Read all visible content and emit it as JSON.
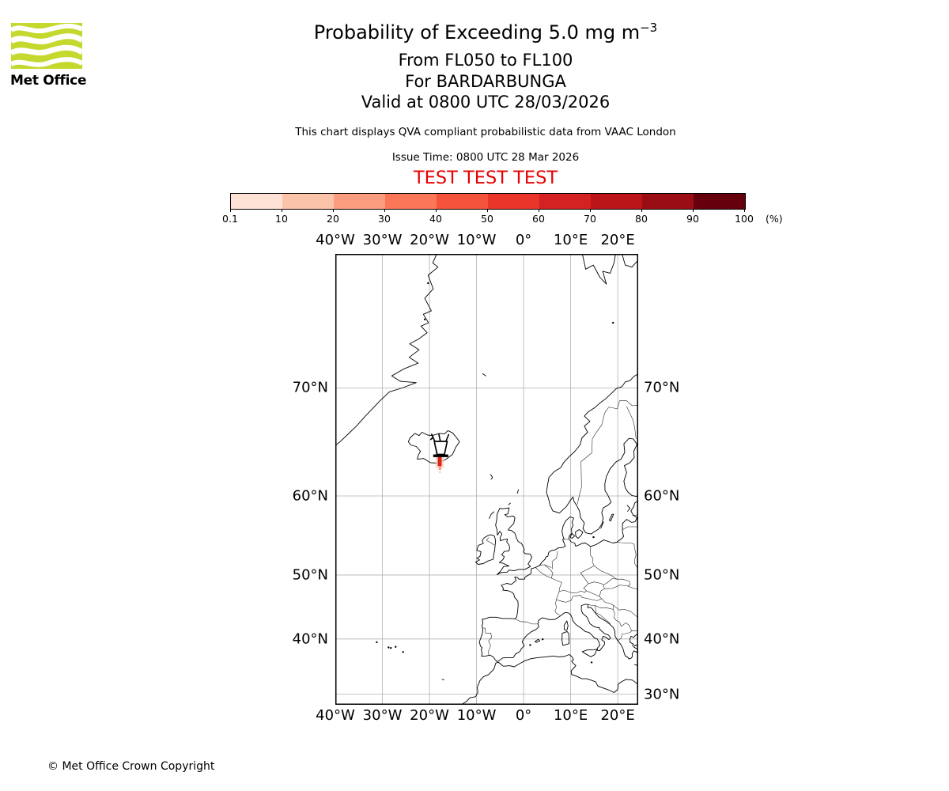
{
  "logo": {
    "brand": "Met Office",
    "green": "#c4d82e"
  },
  "header": {
    "title_main": "Probability of Exceeding 5.0 mg m",
    "title_sup": "−3",
    "subtitle_levels": "From FL050 to FL100",
    "subtitle_volcano": "For BARDARBUNGA",
    "subtitle_valid": "Valid at 0800 UTC 28/03/2026",
    "description": "This chart displays QVA compliant probabilistic data from VAAC London",
    "issue_time": "Issue Time: 0800 UTC 28 Mar 2026",
    "test_banner": "TEST TEST TEST",
    "test_color": "#e60000"
  },
  "colorbar": {
    "tick_labels": [
      "0.1",
      "10",
      "20",
      "30",
      "40",
      "50",
      "60",
      "70",
      "80",
      "90",
      "100"
    ],
    "unit_label": "(%)",
    "segment_colors": [
      "#fde2d5",
      "#fcc3ab",
      "#fc9d7f",
      "#fb7758",
      "#f5543c",
      "#ea362a",
      "#d42121",
      "#bb151a",
      "#9a0d14",
      "#67000d"
    ]
  },
  "map": {
    "top_axis_labels": [
      "40°W",
      "30°W",
      "20°W",
      "10°W",
      "0°",
      "10°E",
      "20°E"
    ],
    "bottom_axis_labels": [
      "40°W",
      "30°W",
      "20°W",
      "10°W",
      "0°",
      "10°E",
      "20°E"
    ],
    "left_axis_labels": [
      "70°N",
      "60°N",
      "50°N",
      "40°N"
    ],
    "right_axis_labels": [
      "70°N",
      "60°N",
      "50°N",
      "40°N",
      "30°N"
    ],
    "grid_color": "#b0b0b0",
    "coast_color": "#000000",
    "ash_core_color": "#d7281a",
    "ash_halo_color": "#fbccbb"
  },
  "footer": {
    "copyright": "© Met Office Crown Copyright"
  },
  "chart_data": {
    "type": "map-probability",
    "projection": "mercator",
    "extent": {
      "lon_min": -40,
      "lon_max": 24.4,
      "lat_min": 28,
      "lat_max": 78
    },
    "graticule_lon_deg": [
      -40,
      -30,
      -20,
      -10,
      0,
      10,
      20
    ],
    "graticule_lat_deg": [
      70,
      60,
      50,
      40,
      30
    ],
    "threshold": "5.0 mg m−3",
    "flight_levels": "FL050 to FL100",
    "volcano": {
      "name": "BARDARBUNGA",
      "lon": -17.6,
      "lat": 64.65
    },
    "probability_scale_percent": [
      0.1,
      10,
      20,
      30,
      40,
      50,
      60,
      70,
      80,
      90,
      100
    ],
    "ash_plume": {
      "location": "narrow plume extending south from the volcano over southern Iceland",
      "core_band_percent": "50-70",
      "halo_band_percent": "0.1-10"
    }
  }
}
